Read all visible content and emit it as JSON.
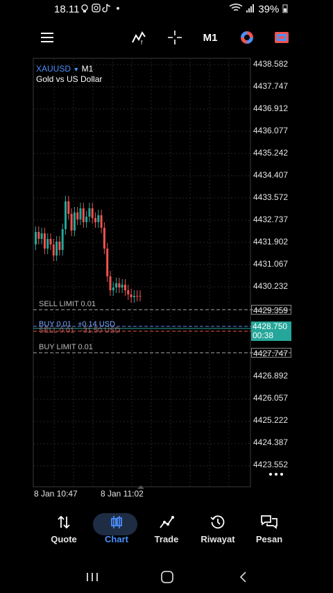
{
  "status_bar": {
    "time": "18.11",
    "battery": "39%"
  },
  "toolbar": {
    "timeframe": "M1"
  },
  "symbol": {
    "name": "XAUUSD",
    "timeframe": "M1",
    "description": "Gold vs US Dollar"
  },
  "price_axis": [
    "4438.582",
    "4437.747",
    "4436.912",
    "4436.077",
    "4435.242",
    "4434.407",
    "4433.572",
    "4432.737",
    "4431.902",
    "4431.067",
    "4430.232",
    "4429.359",
    "4428.750",
    "4427.747",
    "4426.892",
    "4426.057",
    "4425.222",
    "4424.387",
    "4423.552"
  ],
  "orders": {
    "sell_limit": "SELL LIMIT 0.01",
    "sell_limit_price": "4429.359",
    "buy_position": "BUY 0.01",
    "buy_profit": "+0.14 USD",
    "sell_position": "SELL 0.01",
    "sell_profit": "-31.50 USD",
    "current_price": "4428.750",
    "countdown": "00:38",
    "buy_limit": "BUY LIMIT 0.01",
    "buy_limit_price": "4427.747"
  },
  "time_axis": [
    "8 Jan 10:47",
    "8 Jan 11:02"
  ],
  "bottom_nav": [
    {
      "label": "Quote"
    },
    {
      "label": "Chart"
    },
    {
      "label": "Trade"
    },
    {
      "label": "Riwayat"
    },
    {
      "label": "Pesan"
    }
  ],
  "colors": {
    "bull": "#26a69a",
    "bear": "#ef5350",
    "accent": "#4a90ff"
  }
}
